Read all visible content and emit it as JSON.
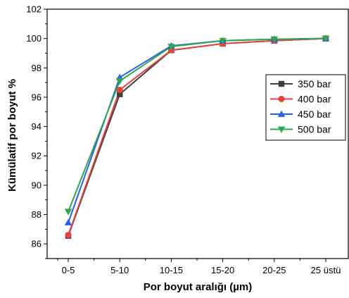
{
  "chart_data": {
    "type": "line",
    "title": "",
    "xlabel": "Por boyut aralığı (µm)",
    "ylabel": "Kümülatif por boyut %",
    "categories": [
      "0-5",
      "5-10",
      "10-15",
      "15-20",
      "20-25",
      "25 üstü"
    ],
    "ylim": [
      85,
      102
    ],
    "yticks": [
      86,
      88,
      90,
      92,
      94,
      96,
      98,
      100,
      102
    ],
    "grid": false,
    "legend_position": "right",
    "series": [
      {
        "name": "350 bar",
        "color": "#404040",
        "marker": "square",
        "values": [
          86.55,
          96.2,
          99.2,
          99.65,
          99.85,
          100.0
        ]
      },
      {
        "name": "400 bar",
        "color": "#e8423b",
        "marker": "circle",
        "values": [
          86.6,
          96.5,
          99.2,
          99.65,
          99.85,
          100.0
        ]
      },
      {
        "name": "450 bar",
        "color": "#2e5ef0",
        "marker": "triangle-up",
        "values": [
          87.45,
          97.35,
          99.5,
          99.85,
          99.95,
          100.0
        ]
      },
      {
        "name": "500 bar",
        "color": "#2ea84c",
        "marker": "triangle-down",
        "values": [
          88.2,
          97.1,
          99.45,
          99.85,
          99.95,
          100.0
        ]
      }
    ]
  }
}
